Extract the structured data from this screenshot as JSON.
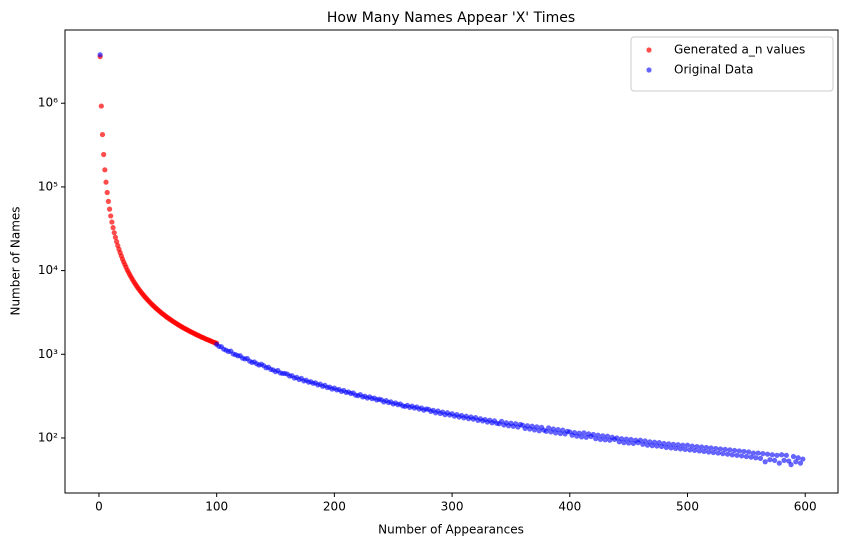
{
  "chart_data": {
    "type": "scatter",
    "title": "How Many Names Appear 'X' Times",
    "x_label": "Number of Appearances",
    "y_label": "Number of Names",
    "log_y": true,
    "legend": "upper right",
    "xlim": [
      -28.85,
      627.85
    ],
    "xticks": [
      0,
      100,
      200,
      300,
      400,
      500,
      600
    ],
    "ylim": [
      22,
      7500000
    ],
    "yticks": [
      {
        "value": 100,
        "label": "10²"
      },
      {
        "value": 1000,
        "label": "10³"
      },
      {
        "value": 10000,
        "label": "10⁴"
      },
      {
        "value": 100000,
        "label": "10⁵"
      },
      {
        "value": 1000000,
        "label": "10⁶"
      }
    ],
    "series": [
      {
        "name": "Generated a_n values",
        "color": "#ff0000",
        "opacity": 0.7,
        "x": [
          1,
          2,
          3,
          4,
          5,
          6,
          7,
          8,
          9,
          10,
          11,
          12,
          13,
          14,
          15,
          16,
          17,
          18,
          19,
          20,
          21,
          22,
          23,
          24,
          25,
          26,
          27,
          28,
          29,
          30,
          31,
          32,
          33,
          34,
          35,
          36,
          37,
          38,
          39,
          40,
          41,
          42,
          43,
          44,
          45,
          46,
          47,
          48,
          49,
          50,
          51,
          52,
          53,
          54,
          55,
          56,
          57,
          58,
          59,
          60,
          61,
          62,
          63,
          64,
          65,
          66,
          67,
          68,
          69,
          70,
          71,
          72,
          73,
          74,
          75,
          76,
          77,
          78,
          79,
          80,
          81,
          82,
          83,
          84,
          85,
          86,
          87,
          88,
          89,
          90,
          91,
          92,
          93,
          94,
          95,
          96,
          97,
          98,
          99,
          100
        ],
        "values": [
          3600000,
          925000,
          422000,
          244000,
          160000,
          114000,
          85700,
          67200,
          54300,
          45000,
          38000,
          32600,
          28400,
          25000,
          22200,
          19900,
          18000,
          16400,
          15000,
          13750,
          12700,
          11800,
          11000,
          10200,
          9600,
          9020,
          8510,
          8040,
          7610,
          7220,
          6870,
          6540,
          6240,
          5970,
          5710,
          5480,
          5260,
          5060,
          4870,
          4690,
          4520,
          4370,
          4220,
          4080,
          3950,
          3830,
          3710,
          3600,
          3500,
          3400,
          3310,
          3220,
          3130,
          3050,
          2980,
          2900,
          2830,
          2760,
          2700,
          2640,
          2580,
          2520,
          2470,
          2420,
          2370,
          2320,
          2270,
          2230,
          2180,
          2140,
          2100,
          2060,
          2030,
          1990,
          1960,
          1920,
          1890,
          1860,
          1830,
          1800,
          1770,
          1740,
          1710,
          1690,
          1660,
          1640,
          1610,
          1590,
          1570,
          1540,
          1520,
          1500,
          1480,
          1460,
          1440,
          1420,
          1400,
          1380,
          1370,
          1350
        ]
      },
      {
        "name": "Original Data",
        "color": "#0000ff",
        "opacity": 0.6,
        "x": [
          1,
          100,
          102,
          104,
          106,
          108,
          110,
          112,
          114,
          116,
          118,
          120,
          122,
          124,
          126,
          128,
          130,
          132,
          134,
          136,
          138,
          140,
          142,
          144,
          146,
          148,
          150,
          152,
          154,
          156,
          158,
          160,
          162,
          164,
          166,
          168,
          170,
          172,
          174,
          176,
          178,
          180,
          182,
          184,
          186,
          188,
          190,
          192,
          194,
          196,
          198,
          200,
          202,
          204,
          206,
          208,
          210,
          212,
          214,
          216,
          218,
          220,
          222,
          224,
          226,
          228,
          230,
          232,
          234,
          236,
          238,
          240,
          242,
          244,
          246,
          248,
          250,
          252,
          254,
          256,
          258,
          260,
          262,
          264,
          266,
          268,
          270,
          272,
          274,
          276,
          278,
          280,
          282,
          284,
          286,
          288,
          290,
          292,
          294,
          296,
          298,
          300,
          302,
          304,
          306,
          308,
          310,
          312,
          314,
          316,
          318,
          320,
          322,
          324,
          326,
          328,
          330,
          332,
          334,
          336,
          338,
          340,
          342,
          344,
          346,
          348,
          350,
          352,
          354,
          356,
          358,
          360,
          362,
          364,
          366,
          368,
          370,
          372,
          374,
          376,
          378,
          380,
          382,
          384,
          386,
          388,
          390,
          392,
          394,
          396,
          398,
          400,
          402,
          404,
          406,
          408,
          410,
          412,
          414,
          416,
          418,
          420,
          422,
          424,
          426,
          428,
          430,
          432,
          434,
          436,
          438,
          440,
          442,
          444,
          446,
          448,
          450,
          452,
          454,
          456,
          458,
          460,
          462,
          464,
          466,
          468,
          470,
          472,
          474,
          476,
          478,
          480,
          482,
          484,
          486,
          488,
          490,
          492,
          494,
          496,
          498,
          500,
          502,
          504,
          506,
          508,
          510,
          512,
          514,
          516,
          518,
          520,
          522,
          524,
          526,
          528,
          530,
          532,
          534,
          536,
          538,
          540,
          542,
          544,
          546,
          548,
          550,
          552,
          554,
          556,
          558,
          560,
          562,
          564,
          566,
          568,
          570,
          572,
          574,
          576,
          578,
          580,
          582,
          584,
          586,
          588,
          590,
          592,
          594,
          596,
          598
        ],
        "values": [
          3800000,
          1310,
          1240,
          1230,
          1150,
          1120,
          1080,
          1090,
          1010,
          990,
          960,
          960,
          900,
          880,
          890,
          830,
          800,
          810,
          770,
          745,
          760,
          730,
          690,
          700,
          660,
          650,
          620,
          640,
          600,
          590,
          590,
          580,
          550,
          555,
          520,
          530,
          500,
          515,
          480,
          490,
          465,
          470,
          450,
          455,
          430,
          440,
          415,
          425,
          400,
          405,
          385,
          395,
          375,
          380,
          360,
          370,
          350,
          355,
          340,
          345,
          325,
          320,
          330,
          310,
          315,
          300,
          310,
          295,
          300,
          285,
          290,
          285,
          270,
          280,
          265,
          270,
          255,
          262,
          250,
          255,
          242,
          238,
          245,
          232,
          240,
          228,
          235,
          222,
          228,
          215,
          222,
          220,
          208,
          214,
          200,
          210,
          196,
          204,
          190,
          200,
          188,
          195,
          182,
          190,
          178,
          186,
          174,
          182,
          170,
          178,
          168,
          175,
          162,
          170,
          160,
          166,
          155,
          163,
          152,
          160,
          150,
          148,
          158,
          143,
          152,
          140,
          150,
          138,
          148,
          135,
          145,
          142,
          130,
          140,
          128,
          138,
          125,
          136,
          122,
          134,
          124,
          120,
          132,
          118,
          128,
          115,
          126,
          113,
          124,
          112,
          120,
          118,
          108,
          116,
          105,
          114,
          103,
          115,
          102,
          112,
          104,
          110,
          98,
          108,
          96,
          106,
          95,
          105,
          94,
          102,
          96,
          100,
          90,
          98,
          88,
          97,
          87,
          96,
          86,
          94,
          88,
          94,
          84,
          92,
          82,
          90,
          81,
          89,
          80,
          88,
          79,
          86,
          77,
          85,
          76,
          84,
          75,
          83,
          74,
          82,
          73,
          82,
          72,
          80,
          71,
          79,
          70,
          78,
          69,
          77,
          68,
          76,
          67,
          75,
          66,
          74,
          65,
          73,
          64,
          72,
          63,
          71,
          62,
          70,
          61,
          69,
          60,
          68,
          59,
          66,
          58,
          66,
          57,
          65,
          52,
          64,
          55,
          63,
          54,
          62,
          50,
          63,
          54,
          62,
          53,
          48,
          60,
          52,
          58,
          50,
          56
        ]
      }
    ]
  }
}
